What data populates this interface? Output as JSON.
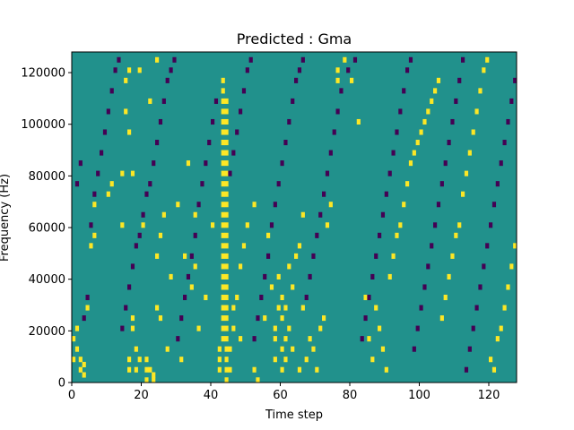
{
  "chart_data": {
    "type": "heatmap",
    "title": "Predicted : Gma",
    "xlabel": "Time step",
    "ylabel": "Frequency (Hz)",
    "xlim": [
      0,
      128
    ],
    "ylim": [
      0,
      128000
    ],
    "x_ticks": [
      0,
      20,
      40,
      60,
      80,
      100,
      120
    ],
    "x_tick_labels": [
      "0",
      "20",
      "40",
      "60",
      "80",
      "100",
      "120"
    ],
    "y_ticks": [
      0,
      20000,
      40000,
      60000,
      80000,
      100000,
      120000
    ],
    "y_tick_labels": [
      "0",
      "20000",
      "40000",
      "60000",
      "80000",
      "100000",
      "120000"
    ],
    "n_time_steps": 128,
    "n_freq_bins": 64,
    "bin_height_hz": 2000,
    "grid": false,
    "colors": {
      "background": "#21918c",
      "high": "#fde725",
      "low": "#440154"
    },
    "high_cells": [
      [
        0,
        4
      ],
      [
        0,
        8
      ],
      [
        1,
        6
      ],
      [
        1,
        10
      ],
      [
        2,
        2
      ],
      [
        2,
        4
      ],
      [
        3,
        1
      ],
      [
        3,
        3
      ],
      [
        4,
        14
      ],
      [
        5,
        26
      ],
      [
        6,
        28
      ],
      [
        6,
        34
      ],
      [
        10,
        36
      ],
      [
        11,
        38
      ],
      [
        14,
        30
      ],
      [
        14,
        40
      ],
      [
        15,
        52
      ],
      [
        15,
        58
      ],
      [
        16,
        2
      ],
      [
        16,
        4
      ],
      [
        16,
        48
      ],
      [
        16,
        60
      ],
      [
        17,
        10
      ],
      [
        17,
        12
      ],
      [
        17,
        40
      ],
      [
        18,
        2
      ],
      [
        18,
        6
      ],
      [
        19,
        4
      ],
      [
        19,
        60
      ],
      [
        20,
        30
      ],
      [
        21,
        0
      ],
      [
        21,
        2
      ],
      [
        21,
        4
      ],
      [
        22,
        2
      ],
      [
        22,
        54
      ],
      [
        23,
        0
      ],
      [
        23,
        1
      ],
      [
        24,
        14
      ],
      [
        24,
        24
      ],
      [
        24,
        62
      ],
      [
        25,
        12
      ],
      [
        25,
        28
      ],
      [
        26,
        32
      ],
      [
        27,
        6
      ],
      [
        28,
        20
      ],
      [
        30,
        34
      ],
      [
        31,
        4
      ],
      [
        32,
        24
      ],
      [
        33,
        42
      ],
      [
        34,
        18
      ],
      [
        35,
        22
      ],
      [
        35,
        32
      ],
      [
        36,
        10
      ],
      [
        38,
        16
      ],
      [
        40,
        30
      ],
      [
        42,
        2
      ],
      [
        42,
        4
      ],
      [
        42,
        6
      ],
      [
        43,
        8
      ],
      [
        43,
        10
      ],
      [
        43,
        12
      ],
      [
        43,
        14
      ],
      [
        43,
        16
      ],
      [
        43,
        18
      ],
      [
        43,
        20
      ],
      [
        43,
        22
      ],
      [
        43,
        24
      ],
      [
        43,
        26
      ],
      [
        43,
        28
      ],
      [
        43,
        30
      ],
      [
        43,
        32
      ],
      [
        43,
        34
      ],
      [
        43,
        36
      ],
      [
        43,
        38
      ],
      [
        43,
        40
      ],
      [
        43,
        42
      ],
      [
        43,
        44
      ],
      [
        43,
        46
      ],
      [
        43,
        48
      ],
      [
        43,
        50
      ],
      [
        43,
        52
      ],
      [
        43,
        54
      ],
      [
        43,
        56
      ],
      [
        43,
        58
      ],
      [
        44,
        0
      ],
      [
        44,
        2
      ],
      [
        44,
        4
      ],
      [
        44,
        6
      ],
      [
        44,
        8
      ],
      [
        44,
        10
      ],
      [
        44,
        12
      ],
      [
        44,
        14
      ],
      [
        44,
        16
      ],
      [
        44,
        18
      ],
      [
        44,
        20
      ],
      [
        44,
        22
      ],
      [
        44,
        24
      ],
      [
        44,
        26
      ],
      [
        44,
        28
      ],
      [
        44,
        30
      ],
      [
        44,
        32
      ],
      [
        44,
        34
      ],
      [
        44,
        36
      ],
      [
        44,
        38
      ],
      [
        44,
        40
      ],
      [
        44,
        42
      ],
      [
        44,
        44
      ],
      [
        44,
        46
      ],
      [
        44,
        48
      ],
      [
        44,
        50
      ],
      [
        44,
        52
      ],
      [
        44,
        54
      ],
      [
        45,
        2
      ],
      [
        45,
        6
      ],
      [
        46,
        10
      ],
      [
        46,
        14
      ],
      [
        47,
        16
      ],
      [
        48,
        8
      ],
      [
        48,
        22
      ],
      [
        49,
        26
      ],
      [
        50,
        30
      ],
      [
        52,
        2
      ],
      [
        52,
        34
      ],
      [
        53,
        0
      ],
      [
        55,
        12
      ],
      [
        56,
        28
      ],
      [
        57,
        18
      ],
      [
        58,
        4
      ],
      [
        58,
        8
      ],
      [
        58,
        10
      ],
      [
        59,
        14
      ],
      [
        59,
        20
      ],
      [
        60,
        2
      ],
      [
        60,
        6
      ],
      [
        60,
        12
      ],
      [
        60,
        16
      ],
      [
        61,
        4
      ],
      [
        61,
        8
      ],
      [
        61,
        14
      ],
      [
        62,
        10
      ],
      [
        62,
        22
      ],
      [
        63,
        6
      ],
      [
        63,
        18
      ],
      [
        64,
        24
      ],
      [
        65,
        2
      ],
      [
        65,
        26
      ],
      [
        66,
        14
      ],
      [
        66,
        32
      ],
      [
        67,
        4
      ],
      [
        68,
        8
      ],
      [
        69,
        6
      ],
      [
        70,
        2
      ],
      [
        71,
        10
      ],
      [
        72,
        12
      ],
      [
        73,
        30
      ],
      [
        74,
        34
      ],
      [
        76,
        58
      ],
      [
        76,
        60
      ],
      [
        78,
        62
      ],
      [
        80,
        58
      ],
      [
        82,
        50
      ],
      [
        84,
        16
      ],
      [
        85,
        8
      ],
      [
        86,
        4
      ],
      [
        87,
        14
      ],
      [
        88,
        10
      ],
      [
        89,
        6
      ],
      [
        90,
        2
      ],
      [
        91,
        20
      ],
      [
        92,
        24
      ],
      [
        93,
        28
      ],
      [
        94,
        30
      ],
      [
        95,
        34
      ],
      [
        96,
        38
      ],
      [
        97,
        42
      ],
      [
        98,
        44
      ],
      [
        99,
        46
      ],
      [
        100,
        48
      ],
      [
        101,
        50
      ],
      [
        102,
        52
      ],
      [
        103,
        54
      ],
      [
        104,
        56
      ],
      [
        105,
        58
      ],
      [
        106,
        12
      ],
      [
        107,
        16
      ],
      [
        108,
        20
      ],
      [
        109,
        24
      ],
      [
        110,
        28
      ],
      [
        111,
        30
      ],
      [
        112,
        36
      ],
      [
        113,
        40
      ],
      [
        114,
        44
      ],
      [
        115,
        48
      ],
      [
        116,
        52
      ],
      [
        117,
        56
      ],
      [
        118,
        60
      ],
      [
        119,
        62
      ],
      [
        120,
        4
      ],
      [
        121,
        2
      ],
      [
        122,
        8
      ],
      [
        123,
        10
      ],
      [
        124,
        14
      ],
      [
        125,
        18
      ],
      [
        126,
        22
      ],
      [
        127,
        26
      ]
    ],
    "low_cells": [
      [
        1,
        38
      ],
      [
        2,
        42
      ],
      [
        3,
        12
      ],
      [
        4,
        16
      ],
      [
        5,
        30
      ],
      [
        6,
        36
      ],
      [
        7,
        40
      ],
      [
        8,
        44
      ],
      [
        9,
        48
      ],
      [
        10,
        52
      ],
      [
        11,
        56
      ],
      [
        12,
        60
      ],
      [
        13,
        62
      ],
      [
        14,
        10
      ],
      [
        15,
        14
      ],
      [
        16,
        18
      ],
      [
        17,
        22
      ],
      [
        18,
        26
      ],
      [
        19,
        28
      ],
      [
        20,
        32
      ],
      [
        21,
        36
      ],
      [
        22,
        38
      ],
      [
        23,
        42
      ],
      [
        24,
        46
      ],
      [
        25,
        50
      ],
      [
        26,
        54
      ],
      [
        27,
        58
      ],
      [
        28,
        60
      ],
      [
        29,
        62
      ],
      [
        30,
        8
      ],
      [
        31,
        12
      ],
      [
        32,
        16
      ],
      [
        33,
        20
      ],
      [
        34,
        24
      ],
      [
        35,
        28
      ],
      [
        36,
        34
      ],
      [
        37,
        38
      ],
      [
        38,
        42
      ],
      [
        39,
        46
      ],
      [
        40,
        50
      ],
      [
        41,
        54
      ],
      [
        45,
        40
      ],
      [
        46,
        44
      ],
      [
        47,
        48
      ],
      [
        48,
        52
      ],
      [
        49,
        56
      ],
      [
        50,
        60
      ],
      [
        51,
        62
      ],
      [
        52,
        8
      ],
      [
        53,
        12
      ],
      [
        54,
        16
      ],
      [
        55,
        20
      ],
      [
        56,
        24
      ],
      [
        57,
        30
      ],
      [
        58,
        34
      ],
      [
        59,
        38
      ],
      [
        60,
        42
      ],
      [
        61,
        46
      ],
      [
        62,
        50
      ],
      [
        63,
        54
      ],
      [
        64,
        58
      ],
      [
        65,
        60
      ],
      [
        66,
        62
      ],
      [
        67,
        16
      ],
      [
        68,
        20
      ],
      [
        69,
        24
      ],
      [
        70,
        28
      ],
      [
        71,
        32
      ],
      [
        72,
        36
      ],
      [
        73,
        40
      ],
      [
        74,
        44
      ],
      [
        75,
        48
      ],
      [
        76,
        52
      ],
      [
        77,
        56
      ],
      [
        79,
        60
      ],
      [
        81,
        62
      ],
      [
        83,
        8
      ],
      [
        84,
        12
      ],
      [
        85,
        16
      ],
      [
        86,
        20
      ],
      [
        87,
        24
      ],
      [
        88,
        28
      ],
      [
        89,
        32
      ],
      [
        90,
        36
      ],
      [
        91,
        40
      ],
      [
        92,
        44
      ],
      [
        93,
        48
      ],
      [
        94,
        52
      ],
      [
        95,
        56
      ],
      [
        96,
        60
      ],
      [
        97,
        62
      ],
      [
        98,
        6
      ],
      [
        99,
        10
      ],
      [
        100,
        14
      ],
      [
        101,
        18
      ],
      [
        102,
        22
      ],
      [
        103,
        26
      ],
      [
        104,
        30
      ],
      [
        105,
        34
      ],
      [
        106,
        38
      ],
      [
        107,
        42
      ],
      [
        108,
        46
      ],
      [
        109,
        50
      ],
      [
        110,
        54
      ],
      [
        111,
        58
      ],
      [
        112,
        62
      ],
      [
        113,
        2
      ],
      [
        114,
        6
      ],
      [
        115,
        10
      ],
      [
        116,
        14
      ],
      [
        117,
        18
      ],
      [
        118,
        22
      ],
      [
        119,
        26
      ],
      [
        120,
        30
      ],
      [
        121,
        34
      ],
      [
        122,
        38
      ],
      [
        123,
        42
      ],
      [
        124,
        46
      ],
      [
        125,
        50
      ],
      [
        126,
        54
      ],
      [
        127,
        58
      ]
    ]
  }
}
